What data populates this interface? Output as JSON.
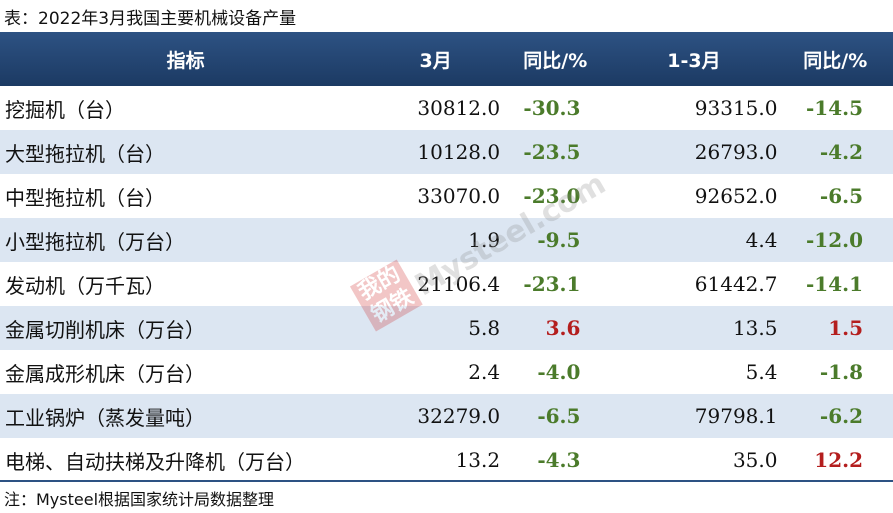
{
  "title": "表：2022年3月我国主要机械设备产量",
  "table": {
    "header": [
      "指标",
      "3月",
      "同比/%",
      "1-3月",
      "同比/%"
    ],
    "rows": [
      [
        "挖掘机（台）",
        "30812.0",
        "-30.3",
        "93315.0",
        "-14.5"
      ],
      [
        "大型拖拉机（台）",
        "10128.0",
        "-23.5",
        "26793.0",
        "-4.2"
      ],
      [
        "中型拖拉机（台）",
        "33070.0",
        "-23.0",
        "92652.0",
        "-6.5"
      ],
      [
        "小型拖拉机（万台）",
        "1.9",
        "-9.5",
        "4.4",
        "-12.0"
      ],
      [
        "发动机（万千瓦）",
        "21106.4",
        "-23.1",
        "61442.7",
        "-14.1"
      ],
      [
        "金属切削机床（万台）",
        "5.8",
        "3.6",
        "13.5",
        "1.5"
      ],
      [
        "金属成形机床（万台）",
        "2.4",
        "-4.0",
        "5.4",
        "-1.8"
      ],
      [
        "工业锅炉（蒸发量吨）",
        "32279.0",
        "-6.5",
        "79798.1",
        "-6.2"
      ],
      [
        "电梯、自动扶梯及升降机（万台）",
        "13.2",
        "-4.3",
        "35.0",
        "12.2"
      ]
    ]
  },
  "note": "注：Mysteel根据国家统计局数据整理",
  "watermark": {
    "logo": "我的钢铁",
    "site": "Mysteel.com"
  }
}
